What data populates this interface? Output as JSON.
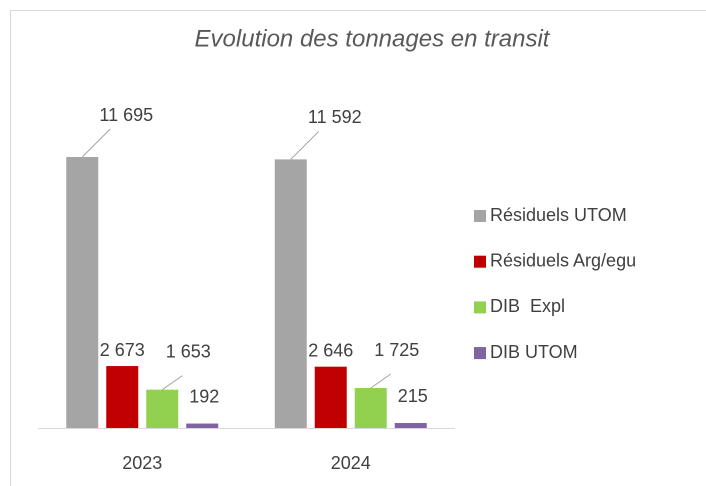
{
  "chart_data": {
    "type": "bar",
    "title": "Evolution des tonnages en transit",
    "categories": [
      "2023",
      "2024"
    ],
    "series": [
      {
        "name": "Résiduels UTOM",
        "color": "#a5a5a5",
        "values": [
          11695,
          11592
        ],
        "value_labels": [
          "11 695",
          "11 592"
        ]
      },
      {
        "name": "Résiduels Arg/egu",
        "color": "#c00000",
        "values": [
          2673,
          2646
        ],
        "value_labels": [
          "2 673",
          "2 646"
        ]
      },
      {
        "name": "DIB  Expl",
        "color": "#92d050",
        "values": [
          1653,
          1725
        ],
        "value_labels": [
          "1 653",
          "1 725"
        ]
      },
      {
        "name": "DIB UTOM",
        "color": "#8064a2",
        "values": [
          192,
          215
        ],
        "value_labels": [
          "192",
          "215"
        ]
      }
    ],
    "legend": "right"
  }
}
